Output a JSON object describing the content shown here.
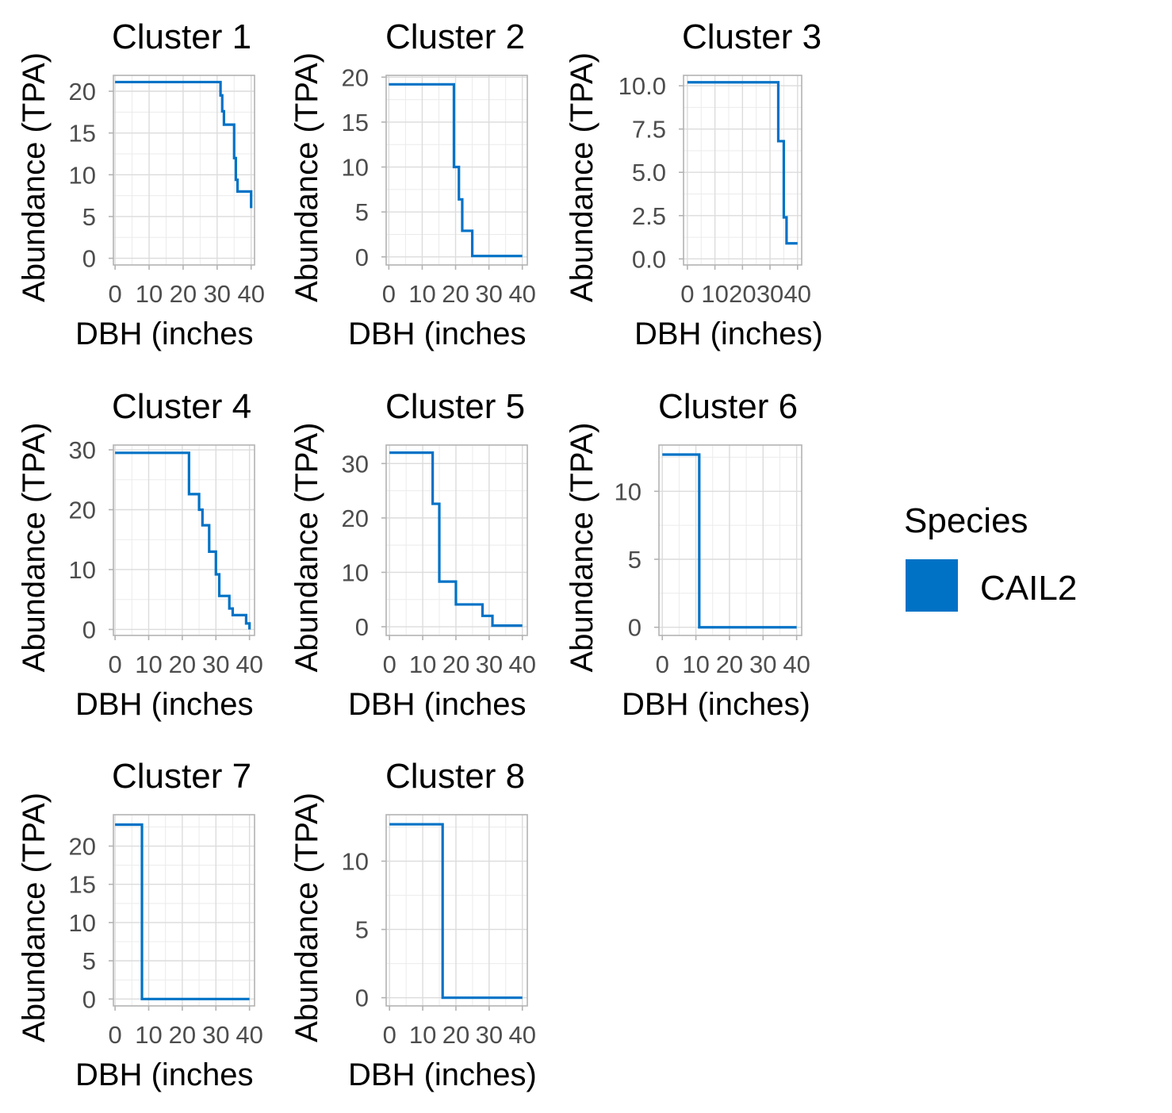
{
  "chart_data": {
    "type": "line",
    "step": true,
    "grid": true,
    "legend": {
      "title": "Species",
      "placement": "right",
      "entries": [
        {
          "name": "CAIL2",
          "color": "#0072c6"
        }
      ]
    },
    "panels": [
      {
        "title": "Cluster 1",
        "xlabel": "DBH (inches",
        "ylabel": "Abundance (TPA)",
        "xlim": [
          -0.5,
          41
        ],
        "ylim": [
          -0.8,
          21.9
        ],
        "xticks": [
          0,
          10,
          20,
          30,
          40
        ],
        "xtick_labels": [
          "0",
          "10",
          "20",
          "30",
          "40"
        ],
        "yticks": [
          0,
          5,
          10,
          15,
          20
        ],
        "ytick_labels": [
          "0",
          "5",
          "10",
          "15",
          "20"
        ],
        "x": [
          0,
          31,
          31.5,
          32,
          33,
          35,
          35.5,
          36,
          37,
          40
        ],
        "y": [
          21.1,
          19.5,
          17.6,
          16,
          16,
          12,
          9.4,
          8,
          8,
          6
        ]
      },
      {
        "title": "Cluster 2",
        "xlabel": "DBH (inches",
        "ylabel": "Abundance (TPA)",
        "xlim": [
          -0.8,
          41.5
        ],
        "ylim": [
          -0.9,
          20.2
        ],
        "xticks": [
          0,
          10,
          20,
          30,
          40
        ],
        "xtick_labels": [
          "0",
          "10",
          "20",
          "30",
          "40"
        ],
        "yticks": [
          0,
          5,
          10,
          15,
          20
        ],
        "ytick_labels": [
          "0",
          "5",
          "10",
          "15",
          "20"
        ],
        "x": [
          0,
          19.5,
          21,
          22,
          25,
          40
        ],
        "y": [
          19.2,
          10,
          6.4,
          2.9,
          0.1,
          0.1
        ]
      },
      {
        "title": "Cluster 3",
        "xlabel": "DBH (inches)",
        "ylabel": "Abundance (TPA)",
        "xlim": [
          -1.4,
          41.5
        ],
        "ylim": [
          -0.35,
          10.6
        ],
        "xticks": [
          0,
          10,
          20,
          30,
          40
        ],
        "xtick_labels": [
          "0",
          "10",
          "20",
          "30",
          "40"
        ],
        "yticks": [
          0,
          2.5,
          5,
          7.5,
          10
        ],
        "ytick_labels": [
          "0.0",
          "2.5",
          "5.0",
          "7.5",
          "10.0"
        ],
        "x": [
          0,
          33,
          35,
          36,
          40
        ],
        "y": [
          10.2,
          6.8,
          2.4,
          0.9,
          0.9
        ]
      },
      {
        "title": "Cluster 4",
        "xlabel": "DBH (inches",
        "ylabel": "Abundance (TPA)",
        "xlim": [
          -0.5,
          41.5
        ],
        "ylim": [
          -1,
          30.8
        ],
        "xticks": [
          0,
          10,
          20,
          30,
          40
        ],
        "xtick_labels": [
          "0",
          "10",
          "20",
          "30",
          "40"
        ],
        "yticks": [
          0,
          10,
          20,
          30
        ],
        "ytick_labels": [
          "0",
          "10",
          "20",
          "30"
        ],
        "x": [
          0,
          22,
          25,
          26,
          28,
          30,
          31,
          32,
          34,
          35,
          39,
          40
        ],
        "y": [
          29.5,
          22.6,
          20,
          17.4,
          13,
          9.2,
          5.6,
          5.6,
          3.5,
          2.4,
          1,
          0
        ]
      },
      {
        "title": "Cluster 5",
        "xlabel": "DBH (inches",
        "ylabel": "Abundance (TPA)",
        "xlim": [
          -1,
          41.5
        ],
        "ylim": [
          -1.6,
          33.4
        ],
        "xticks": [
          0,
          10,
          20,
          30,
          40
        ],
        "xtick_labels": [
          "0",
          "10",
          "20",
          "30",
          "40"
        ],
        "yticks": [
          0,
          10,
          20,
          30
        ],
        "ytick_labels": [
          "0",
          "10",
          "20",
          "30"
        ],
        "x": [
          0,
          13,
          15,
          20,
          28,
          31,
          40
        ],
        "y": [
          32,
          22.6,
          8.3,
          4.1,
          2,
          0.2,
          0.2
        ]
      },
      {
        "title": "Cluster 6",
        "xlabel": "DBH (inches)",
        "ylabel": "Abundance (TPA)",
        "xlim": [
          -1,
          41.5
        ],
        "ylim": [
          -0.6,
          13.4
        ],
        "xticks": [
          0,
          10,
          20,
          30,
          40
        ],
        "xtick_labels": [
          "0",
          "10",
          "20",
          "30",
          "40"
        ],
        "yticks": [
          0,
          5,
          10
        ],
        "ytick_labels": [
          "0",
          "5",
          "10"
        ],
        "x": [
          0,
          11,
          40
        ],
        "y": [
          12.7,
          0,
          0
        ]
      },
      {
        "title": "Cluster 7",
        "xlabel": "DBH (inches",
        "ylabel": "Abundance (TPA)",
        "xlim": [
          -0.5,
          41.5
        ],
        "ylim": [
          -0.9,
          24.1
        ],
        "xticks": [
          0,
          10,
          20,
          30,
          40
        ],
        "xtick_labels": [
          "0",
          "10",
          "20",
          "30",
          "40"
        ],
        "yticks": [
          0,
          5,
          10,
          15,
          20
        ],
        "ytick_labels": [
          "0",
          "5",
          "10",
          "15",
          "20"
        ],
        "x": [
          0,
          8,
          40
        ],
        "y": [
          22.8,
          0,
          0
        ]
      },
      {
        "title": "Cluster 8",
        "xlabel": "DBH (inches)",
        "ylabel": "Abundance (TPA)",
        "xlim": [
          -1,
          41.5
        ],
        "ylim": [
          -0.6,
          13.4
        ],
        "xticks": [
          0,
          10,
          20,
          30,
          40
        ],
        "xtick_labels": [
          "0",
          "10",
          "20",
          "30",
          "40"
        ],
        "yticks": [
          0,
          5,
          10
        ],
        "ytick_labels": [
          "0",
          "5",
          "10"
        ],
        "x": [
          0,
          16,
          40
        ],
        "y": [
          12.7,
          0,
          0
        ]
      }
    ]
  }
}
